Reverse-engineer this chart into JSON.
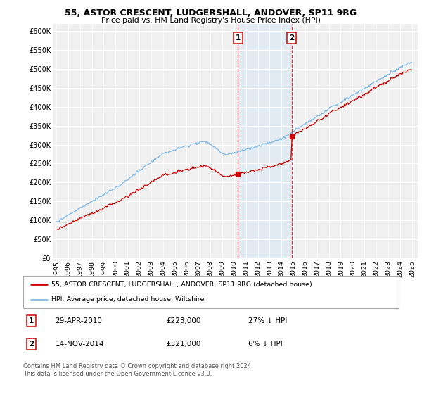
{
  "title": "55, ASTOR CRESCENT, LUDGERSHALL, ANDOVER, SP11 9RG",
  "subtitle": "Price paid vs. HM Land Registry's House Price Index (HPI)",
  "ylim": [
    0,
    620000
  ],
  "yticks": [
    0,
    50000,
    100000,
    150000,
    200000,
    250000,
    300000,
    350000,
    400000,
    450000,
    500000,
    550000,
    600000
  ],
  "ytick_labels": [
    "£0",
    "£50K",
    "£100K",
    "£150K",
    "£200K",
    "£250K",
    "£300K",
    "£350K",
    "£400K",
    "£450K",
    "£500K",
    "£550K",
    "£600K"
  ],
  "hpi_color": "#7ab8e8",
  "price_color": "#cc0000",
  "sale1_date_num": 2010.33,
  "sale1_price": 223000,
  "sale2_date_num": 2014.87,
  "sale2_price": 321000,
  "legend_line1": "55, ASTOR CRESCENT, LUDGERSHALL, ANDOVER, SP11 9RG (detached house)",
  "legend_line2": "HPI: Average price, detached house, Wiltshire",
  "table_row1": [
    "1",
    "29-APR-2010",
    "£223,000",
    "27% ↓ HPI"
  ],
  "table_row2": [
    "2",
    "14-NOV-2014",
    "£321,000",
    "6% ↓ HPI"
  ],
  "footnote": "Contains HM Land Registry data © Crown copyright and database right 2024.\nThis data is licensed under the Open Government Licence v3.0.",
  "bg_color": "#ffffff",
  "plot_bg_color": "#f0f0f0",
  "shade_color": "#d8e8f5",
  "grid_color": "#ffffff"
}
